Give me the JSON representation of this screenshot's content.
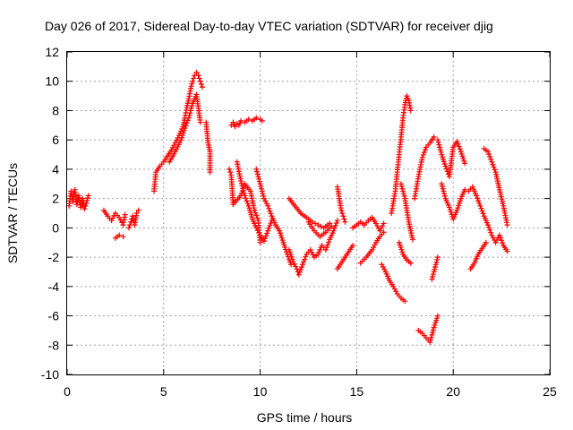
{
  "colors": {
    "series": "#ff0000",
    "grid": "#a0a0a0",
    "axis": "#000000",
    "background": "#ffffff"
  },
  "chart_data": {
    "type": "scatter",
    "title": "Day 026 of 2017, Sidereal Day-to-day VTEC variation (SDTVAR) for receiver djig",
    "xlabel": "GPS time / hours",
    "ylabel": "SDTVAR / TECUs",
    "xlim": [
      0,
      25
    ],
    "ylim": [
      -10,
      12
    ],
    "xticks": [
      0,
      5,
      10,
      15,
      20,
      25
    ],
    "yticks": [
      -10,
      -8,
      -6,
      -4,
      -2,
      0,
      2,
      4,
      6,
      8,
      10,
      12
    ],
    "grid": true,
    "marker": "+",
    "series": [
      {
        "name": "SDTVAR",
        "segments": [
          {
            "x": [
              0.1,
              0.2,
              0.3,
              0.4,
              0.5,
              0.6,
              0.7,
              0.8,
              0.9,
              1.0,
              1.1
            ],
            "y": [
              1.5,
              2.5,
              1.8,
              2.6,
              1.6,
              2.2,
              1.4,
              2.0,
              1.3,
              1.7,
              2.2
            ]
          },
          {
            "x": [
              1.9,
              2.1,
              2.3,
              2.5,
              2.7,
              2.9,
              3.0
            ],
            "y": [
              1.2,
              0.8,
              0.5,
              1.0,
              0.7,
              0.2,
              0.9
            ]
          },
          {
            "x": [
              2.5,
              2.7,
              2.9
            ],
            "y": [
              -0.7,
              -0.5,
              -0.6
            ]
          },
          {
            "x": [
              3.2,
              3.3,
              3.4,
              3.5,
              3.6,
              3.7
            ],
            "y": [
              0.0,
              0.4,
              0.8,
              0.2,
              1.0,
              1.2
            ]
          },
          {
            "x": [
              4.5,
              4.6,
              4.8,
              5.0,
              5.2,
              5.4,
              5.6,
              5.8,
              6.0,
              6.1,
              6.2,
              6.3,
              6.4,
              6.5,
              6.6,
              6.7,
              6.8,
              6.9,
              7.0
            ],
            "y": [
              2.5,
              3.8,
              4.2,
              4.5,
              4.9,
              5.3,
              5.8,
              6.3,
              6.9,
              7.5,
              8.2,
              8.8,
              9.5,
              10.0,
              10.4,
              10.6,
              10.4,
              10.0,
              9.6
            ]
          },
          {
            "x": [
              5.3,
              5.6,
              5.9,
              6.1,
              6.3,
              6.5,
              6.7,
              6.9
            ],
            "y": [
              4.5,
              5.2,
              6.0,
              6.8,
              7.5,
              8.5,
              9.1,
              7.2
            ]
          },
          {
            "x": [
              7.2,
              7.3,
              7.4,
              7.4
            ],
            "y": [
              7.2,
              5.8,
              5.2,
              3.8
            ]
          },
          {
            "x": [
              8.5,
              8.6,
              8.7,
              8.8,
              8.9,
              9.0,
              9.2,
              9.4,
              9.6,
              9.8,
              10.0,
              10.1
            ],
            "y": [
              7.0,
              7.2,
              6.9,
              7.1,
              7.0,
              7.3,
              7.2,
              7.4,
              7.3,
              7.5,
              7.4,
              7.3
            ]
          },
          {
            "x": [
              8.4,
              8.5,
              8.6,
              9.0,
              9.2,
              9.5,
              9.7,
              9.9,
              10.0
            ],
            "y": [
              4.0,
              3.6,
              1.6,
              2.2,
              3.0,
              2.5,
              1.2,
              0.5,
              -1.0
            ]
          },
          {
            "x": [
              8.8,
              9.0,
              9.2,
              9.4,
              9.6,
              9.8,
              10.0,
              10.2,
              10.4,
              10.6
            ],
            "y": [
              4.5,
              3.2,
              2.2,
              1.5,
              0.6,
              0.0,
              -0.5,
              -0.9,
              -0.2,
              0.5
            ]
          },
          {
            "x": [
              9.8,
              10.0,
              10.2,
              10.4,
              10.6,
              10.8,
              11.0,
              11.2,
              11.4,
              11.6
            ],
            "y": [
              4.0,
              3.0,
              2.0,
              1.5,
              0.8,
              0.2,
              -0.2,
              -1.0,
              -1.8,
              -2.5
            ]
          },
          {
            "x": [
              11.5,
              11.7,
              11.9,
              12.0,
              12.2,
              12.4,
              12.6,
              12.8,
              13.0,
              13.2,
              13.4,
              13.6,
              13.8,
              14.0
            ],
            "y": [
              -1.5,
              -2.3,
              -2.8,
              -3.2,
              -2.5,
              -1.8,
              -1.5,
              -2.0,
              -1.8,
              -1.2,
              -1.5,
              -0.8,
              -0.2,
              0.5
            ]
          },
          {
            "x": [
              11.5,
              11.8,
              12.1,
              12.4,
              12.7,
              13.0,
              13.3,
              13.6
            ],
            "y": [
              2.0,
              1.5,
              1.0,
              0.7,
              0.4,
              0.2,
              0.0,
              0.3
            ]
          },
          {
            "x": [
              12.5,
              12.8,
              13.1,
              13.4,
              13.7
            ],
            "y": [
              0.4,
              -0.2,
              -0.6,
              -0.3,
              0.1
            ]
          },
          {
            "x": [
              14.0,
              14.1,
              14.2,
              14.3,
              14.4
            ],
            "y": [
              2.8,
              2.0,
              1.2,
              0.8,
              0.4
            ]
          },
          {
            "x": [
              14.0,
              14.2,
              14.4,
              14.6,
              14.8
            ],
            "y": [
              -2.8,
              -2.4,
              -2.0,
              -1.6,
              -1.2
            ]
          },
          {
            "x": [
              14.8,
              15.0,
              15.2,
              15.4,
              15.6,
              15.8,
              16.0,
              16.2,
              16.4
            ],
            "y": [
              0.0,
              0.2,
              0.4,
              0.2,
              0.5,
              0.7,
              0.3,
              -0.2,
              0.3
            ]
          },
          {
            "x": [
              15.2,
              15.5,
              15.8,
              16.0,
              16.2,
              16.4
            ],
            "y": [
              -2.4,
              -2.0,
              -1.5,
              -1.0,
              -0.6,
              -0.3
            ]
          },
          {
            "x": [
              16.3,
              16.5,
              16.7,
              16.9,
              17.1,
              17.3,
              17.5
            ],
            "y": [
              -2.5,
              -3.0,
              -3.6,
              -4.0,
              -4.5,
              -4.8,
              -5.0
            ]
          },
          {
            "x": [
              16.8,
              17.0,
              17.1,
              17.2,
              17.3,
              17.4,
              17.5,
              17.6,
              17.7,
              17.8
            ],
            "y": [
              1.0,
              2.5,
              3.8,
              5.0,
              6.2,
              7.5,
              8.4,
              9.0,
              8.7,
              8.0
            ]
          },
          {
            "x": [
              17.3,
              17.5,
              17.6,
              17.7,
              17.8,
              17.9
            ],
            "y": [
              3.0,
              2.0,
              1.2,
              0.4,
              -0.2,
              -0.8
            ]
          },
          {
            "x": [
              17.2,
              17.4,
              17.6,
              17.8
            ],
            "y": [
              -1.0,
              -1.8,
              -2.2,
              -2.4
            ]
          },
          {
            "x": [
              18.0,
              18.2,
              18.4,
              18.6,
              18.8,
              19.0
            ],
            "y": [
              2.0,
              3.5,
              4.8,
              5.5,
              5.8,
              6.2
            ]
          },
          {
            "x": [
              18.2,
              18.4,
              18.6,
              18.8,
              19.0,
              19.2
            ],
            "y": [
              -7.0,
              -7.2,
              -7.5,
              -7.8,
              -6.8,
              -6.0
            ]
          },
          {
            "x": [
              18.9,
              19.0,
              19.1,
              19.2
            ],
            "y": [
              -3.5,
              -3.0,
              -2.5,
              -2.0
            ]
          },
          {
            "x": [
              19.2,
              19.4,
              19.6,
              19.8,
              20.0,
              20.2,
              20.4,
              20.6
            ],
            "y": [
              6.0,
              5.0,
              4.2,
              3.5,
              5.5,
              5.9,
              5.2,
              4.4
            ]
          },
          {
            "x": [
              19.4,
              19.6,
              19.8,
              20.0,
              20.2,
              20.4,
              20.6
            ],
            "y": [
              3.0,
              2.0,
              1.4,
              0.6,
              1.2,
              2.0,
              2.6
            ]
          },
          {
            "x": [
              20.8,
              21.0,
              21.2,
              21.4,
              21.6,
              21.8,
              22.0,
              22.2,
              22.4,
              22.6,
              22.8
            ],
            "y": [
              2.5,
              2.8,
              2.2,
              1.5,
              0.8,
              0.2,
              -0.5,
              -1.0,
              -0.5,
              -1.2,
              -1.6
            ]
          },
          {
            "x": [
              20.9,
              21.1,
              21.3,
              21.5,
              21.7
            ],
            "y": [
              -2.8,
              -2.4,
              -1.8,
              -1.4,
              -1.0
            ]
          },
          {
            "x": [
              21.6,
              21.8,
              22.0,
              22.2,
              22.4,
              22.6,
              22.8
            ],
            "y": [
              5.4,
              5.2,
              4.5,
              3.8,
              2.6,
              1.5,
              0.2
            ]
          }
        ]
      }
    ]
  }
}
